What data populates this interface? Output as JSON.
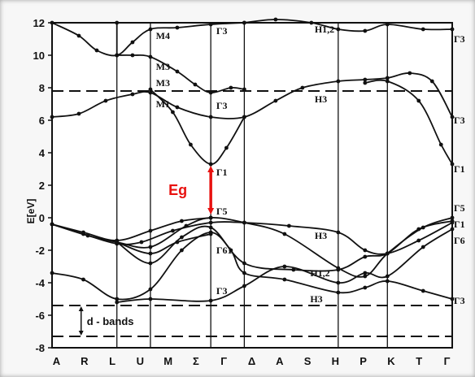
{
  "chart_data": {
    "type": "line",
    "ylabel": "E[eV]",
    "ylim": [
      -8,
      12
    ],
    "y_ticks": [
      "12",
      "10",
      "8",
      "6",
      "4",
      "2",
      "0",
      "-2",
      "-4",
      "-6",
      "-8"
    ],
    "y_tick_values": [
      12,
      10,
      8,
      6,
      4,
      2,
      0,
      -2,
      -4,
      -6,
      -8
    ],
    "x_ticks": [
      "A",
      "R",
      "L",
      "U",
      "M",
      "Σ",
      "Γ",
      "Δ",
      "A",
      "S",
      "H",
      "P",
      "K",
      "T",
      "Γ"
    ],
    "k_positions": {
      "A": 0,
      "L": 1.45,
      "M": 2.2,
      "Γ": 3.55,
      "A2": 4.3,
      "H": 6.4,
      "K": 7.5,
      "Γ2": 8.95
    },
    "reference_lines": [
      7.8,
      -5.4,
      -7.3
    ],
    "bands": [
      {
        "points": [
          [
            0,
            12
          ],
          [
            0.6,
            11.2
          ],
          [
            1.0,
            10.3
          ],
          [
            1.45,
            10
          ],
          [
            1.8,
            10.8
          ],
          [
            2.2,
            11.6
          ],
          [
            2.8,
            11.7
          ],
          [
            3.55,
            11.9
          ],
          [
            4.3,
            12
          ]
        ]
      },
      {
        "points": [
          [
            1.45,
            10
          ],
          [
            1.8,
            10
          ],
          [
            2.2,
            9.9
          ],
          [
            2.8,
            9
          ],
          [
            3.2,
            8.2
          ],
          [
            3.55,
            7.7
          ],
          [
            4.0,
            8
          ],
          [
            4.3,
            7.9
          ]
        ]
      },
      {
        "points": [
          [
            1.45,
            10
          ],
          [
            1.45,
            12
          ]
        ]
      },
      {
        "points": [
          [
            4.3,
            12
          ],
          [
            5.0,
            12.2
          ],
          [
            5.8,
            12
          ],
          [
            6.4,
            11.6
          ],
          [
            7.0,
            11.5
          ],
          [
            7.5,
            11.9
          ],
          [
            8.3,
            11.6
          ],
          [
            8.95,
            11.6
          ]
        ]
      },
      {
        "points": [
          [
            0,
            6.2
          ],
          [
            0.6,
            6.4
          ],
          [
            1.2,
            7.2
          ],
          [
            1.8,
            7.6
          ],
          [
            2.2,
            7.7
          ],
          [
            2.8,
            6.8
          ],
          [
            3.55,
            6.2
          ],
          [
            4.3,
            6.2
          ],
          [
            5.0,
            7.2
          ],
          [
            5.6,
            8.0
          ],
          [
            6.4,
            8.4
          ],
          [
            7.0,
            8.5
          ],
          [
            7.5,
            8.6
          ],
          [
            8.0,
            8.9
          ],
          [
            8.5,
            8.4
          ],
          [
            8.95,
            6.2
          ]
        ]
      },
      {
        "points": [
          [
            2.2,
            7.9
          ],
          [
            2.7,
            6.5
          ],
          [
            3.1,
            4.5
          ],
          [
            3.55,
            3.3
          ],
          [
            3.9,
            4.3
          ],
          [
            4.3,
            6.2
          ]
        ]
      },
      {
        "points": [
          [
            7.0,
            8.3
          ],
          [
            7.5,
            8.4
          ],
          [
            8.2,
            7.2
          ],
          [
            8.7,
            4.5
          ],
          [
            8.95,
            3.3
          ]
        ]
      },
      {
        "points": [
          [
            0,
            -0.4
          ],
          [
            0.7,
            -0.9
          ],
          [
            1.45,
            -1.4
          ],
          [
            2.2,
            -0.8
          ],
          [
            2.9,
            -0.2
          ],
          [
            3.55,
            0
          ]
        ]
      },
      {
        "points": [
          [
            0,
            -0.4
          ],
          [
            0.7,
            -1.0
          ],
          [
            1.45,
            -1.6
          ],
          [
            2.0,
            -1.5
          ],
          [
            2.7,
            -0.8
          ],
          [
            3.55,
            -0.3
          ],
          [
            4.3,
            -0.3
          ],
          [
            5.3,
            -0.5
          ],
          [
            6.4,
            -0.9
          ],
          [
            7.0,
            -2.0
          ],
          [
            7.5,
            -2.2
          ],
          [
            8.2,
            -1.4
          ],
          [
            8.95,
            -0.3
          ]
        ]
      },
      {
        "points": [
          [
            0,
            -0.4
          ],
          [
            0.8,
            -1.1
          ],
          [
            1.45,
            -1.5
          ],
          [
            2.2,
            -1.8
          ],
          [
            3.0,
            -0.5
          ],
          [
            3.55,
            0
          ],
          [
            4.3,
            -0.3
          ],
          [
            5.2,
            -1.0
          ],
          [
            6.4,
            -3.1
          ],
          [
            7.0,
            -3.6
          ],
          [
            7.5,
            -2.2
          ],
          [
            8.3,
            -0.6
          ],
          [
            8.95,
            0
          ]
        ]
      },
      {
        "points": [
          [
            1.45,
            -1.5
          ],
          [
            2.2,
            -2.8
          ],
          [
            2.9,
            -1.2
          ],
          [
            3.55,
            -0.6
          ],
          [
            4.3,
            -2.8
          ],
          [
            5.4,
            -3.2
          ],
          [
            6.4,
            -3.2
          ],
          [
            7.0,
            -2.4
          ],
          [
            7.5,
            -2.2
          ],
          [
            8.2,
            -0.7
          ],
          [
            8.95,
            -0.2
          ]
        ]
      },
      {
        "points": [
          [
            1.45,
            -1.5
          ],
          [
            2.2,
            -2.2
          ],
          [
            2.8,
            -1.5
          ],
          [
            3.55,
            -1.0
          ]
        ]
      },
      {
        "points": [
          [
            0,
            -3.4
          ],
          [
            0.7,
            -3.8
          ],
          [
            1.45,
            -5.0
          ],
          [
            2.2,
            -4.4
          ],
          [
            2.9,
            -2.0
          ],
          [
            3.55,
            -0.9
          ],
          [
            4.0,
            -2.0
          ],
          [
            4.3,
            -3.4
          ],
          [
            5.2,
            -3.8
          ],
          [
            6.4,
            -4.6
          ],
          [
            7.0,
            -4.3
          ],
          [
            7.5,
            -3.9
          ],
          [
            8.3,
            -4.5
          ],
          [
            8.95,
            -5.0
          ]
        ]
      },
      {
        "points": [
          [
            1.45,
            -5.2
          ],
          [
            2.2,
            -5.0
          ],
          [
            3.55,
            -5.1
          ],
          [
            4.3,
            -4.2
          ],
          [
            5.2,
            -3.0
          ],
          [
            6.4,
            -4.0
          ],
          [
            7.0,
            -3.4
          ],
          [
            7.5,
            -3.6
          ],
          [
            8.3,
            -1.8
          ],
          [
            8.95,
            -0.7
          ]
        ]
      }
    ],
    "point_labels": [
      {
        "text": "M4",
        "k": 2.25,
        "e": 11.2
      },
      {
        "text": "M3",
        "k": 2.25,
        "e": 9.3
      },
      {
        "text": "M3",
        "k": 2.25,
        "e": 8.3
      },
      {
        "text": "M1",
        "k": 2.25,
        "e": 7.0
      },
      {
        "text": "Γ3",
        "k": 3.6,
        "e": 11.5
      },
      {
        "text": "Γ3",
        "k": 3.6,
        "e": 6.9
      },
      {
        "text": "Γ1",
        "k": 3.6,
        "e": 2.8
      },
      {
        "text": "Γ5",
        "k": 3.6,
        "e": 0.4
      },
      {
        "text": "Γ61",
        "k": 3.6,
        "e": -2.0
      },
      {
        "text": "Γ3",
        "k": 3.6,
        "e": -4.5
      },
      {
        "text": "H1,2",
        "k": 5.8,
        "e": 11.6
      },
      {
        "text": "H3",
        "k": 5.8,
        "e": 7.3
      },
      {
        "text": "H3",
        "k": 5.8,
        "e": -1.1
      },
      {
        "text": "H1,2",
        "k": 5.7,
        "e": -3.4
      },
      {
        "text": "H3",
        "k": 5.7,
        "e": -5.0
      },
      {
        "text": "Γ3",
        "k": 8.95,
        "e": 11.0
      },
      {
        "text": "Γ3",
        "k": 8.95,
        "e": 6.0
      },
      {
        "text": "Γ1",
        "k": 8.95,
        "e": 3.0
      },
      {
        "text": "Γ5",
        "k": 8.95,
        "e": 0.6
      },
      {
        "text": "Γ1",
        "k": 8.95,
        "e": -0.4
      },
      {
        "text": "Γ6",
        "k": 8.95,
        "e": -1.4
      },
      {
        "text": "Γ3",
        "k": 8.95,
        "e": -5.1
      }
    ],
    "annotations": [
      {
        "text": "Eg",
        "from_e": 0.1,
        "to_e": 3.3,
        "k": 3.55,
        "color": "#e8110f"
      },
      {
        "text": "d - bands",
        "from_e": -5.4,
        "to_e": -7.3,
        "k": 0.65
      }
    ]
  }
}
